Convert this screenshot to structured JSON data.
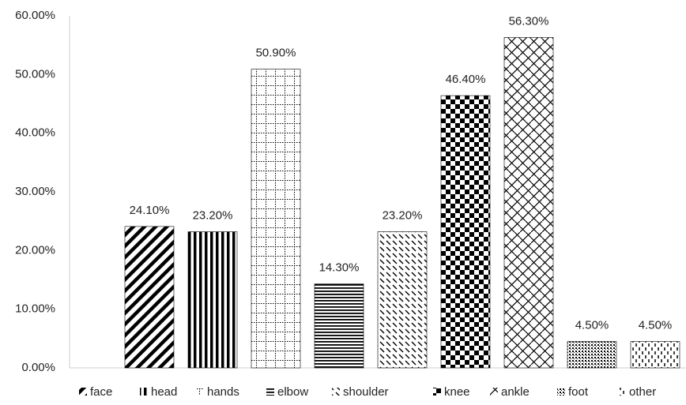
{
  "chart_data": {
    "type": "bar",
    "categories": [
      "face",
      "head",
      "hands",
      "elbow",
      "shoulder",
      "knee",
      "ankle",
      "foot",
      "other"
    ],
    "values": [
      24.1,
      23.2,
      50.9,
      14.3,
      23.2,
      46.4,
      56.3,
      4.5,
      4.5
    ],
    "value_labels": [
      "24.10%",
      "23.20%",
      "50.90%",
      "14.30%",
      "23.20%",
      "46.40%",
      "56.30%",
      "4.50%",
      "4.50%"
    ],
    "color": "#000000",
    "ylim": [
      0,
      60
    ],
    "yticks": [
      {
        "value": 0,
        "label": "0.00%"
      },
      {
        "value": 10,
        "label": "10.00%"
      },
      {
        "value": 20,
        "label": "20.00%"
      },
      {
        "value": 30,
        "label": "30.00%"
      },
      {
        "value": 40,
        "label": "40.00%"
      },
      {
        "value": 50,
        "label": "50.00%"
      },
      {
        "value": 60,
        "label": "60.00%"
      }
    ],
    "grid": false,
    "legend": "bottom"
  }
}
